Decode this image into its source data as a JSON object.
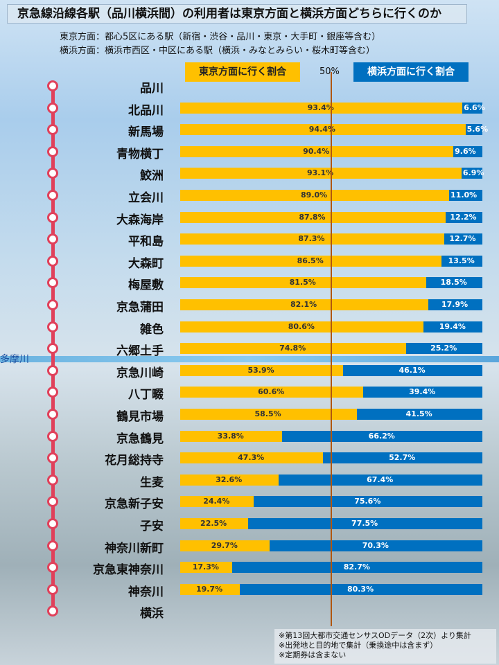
{
  "title": "京急線沿線各駅（品川横浜間）の利用者は東京方面と横浜方面どちらに行くのか",
  "notes": [
    "東京方面：都心5区にある駅（新宿・渋谷・品川・東京・大手町・銀座等含む）",
    "横浜方面：横浜市西区・中区にある駅（横浜・みなとみらい・桜木町等含む）"
  ],
  "legend": {
    "tokyo": "東京方面に行く割合",
    "yokohama": "横浜方面に行く割合",
    "half": "50%"
  },
  "river_label": "多摩川",
  "terminals": {
    "top": "品川",
    "bottom": "横浜"
  },
  "colors": {
    "tokyo": "#ffc000",
    "yokohama": "#0070c0",
    "line": "#e0405a"
  },
  "chart_data": {
    "type": "bar",
    "stacked": true,
    "orientation": "horizontal",
    "categories": [
      "北品川",
      "新馬場",
      "青物横丁",
      "鮫洲",
      "立会川",
      "大森海岸",
      "平和島",
      "大森町",
      "梅屋敷",
      "京急蒲田",
      "雑色",
      "六郷土手",
      "京急川崎",
      "八丁畷",
      "鶴見市場",
      "京急鶴見",
      "花月総持寺",
      "生麦",
      "京急新子安",
      "子安",
      "神奈川新町",
      "京急東神奈川",
      "神奈川"
    ],
    "series": [
      {
        "name": "東京方面に行く割合",
        "values": [
          93.4,
          94.4,
          90.4,
          93.1,
          89.0,
          87.8,
          87.3,
          86.5,
          81.5,
          82.1,
          80.6,
          74.8,
          53.9,
          60.6,
          58.5,
          33.8,
          47.3,
          32.6,
          24.4,
          22.5,
          29.7,
          17.3,
          19.7
        ]
      },
      {
        "name": "横浜方面に行く割合",
        "values": [
          6.6,
          5.6,
          9.6,
          6.9,
          11.0,
          12.2,
          12.7,
          13.5,
          18.5,
          17.9,
          19.4,
          25.2,
          46.1,
          39.4,
          41.5,
          66.2,
          52.7,
          67.4,
          75.6,
          77.5,
          70.3,
          82.7,
          80.3
        ]
      }
    ],
    "xlim": [
      0,
      100
    ],
    "reference_line": 50
  },
  "footnotes": [
    "※第13回大都市交通センサスODデータ（2次）より集計",
    "※出発地と目的地で集計（乗換途中は含まず）",
    "※定期券は含まない"
  ]
}
